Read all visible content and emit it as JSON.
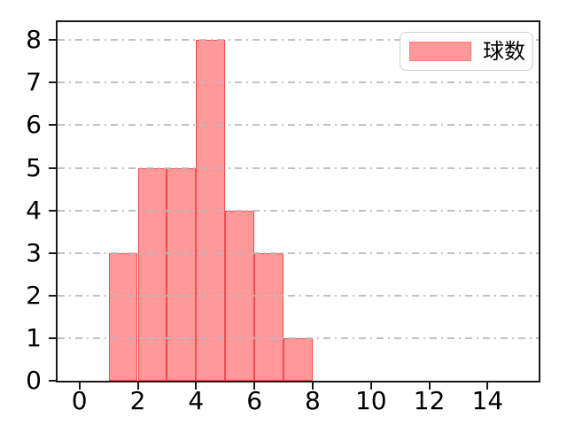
{
  "figure": {
    "kind": "matplotlib-histogram",
    "background": "#ffffff"
  },
  "chart_data": {
    "type": "bar",
    "subtype": "histogram",
    "title": "",
    "xlabel": "",
    "ylabel": "",
    "legend": {
      "label": "球数",
      "position": "upper-right"
    },
    "bin_edges": [
      1,
      2,
      3,
      4,
      5,
      6,
      7,
      8
    ],
    "counts": [
      3,
      5,
      5,
      8,
      4,
      3,
      1
    ],
    "x_tick_values": [
      0,
      2,
      4,
      6,
      8,
      10,
      12,
      14
    ],
    "x_tick_labels": [
      "0",
      "2",
      "4",
      "6",
      "8",
      "10",
      "12",
      "14"
    ],
    "y_tick_values": [
      0,
      1,
      2,
      3,
      4,
      5,
      6,
      7,
      8
    ],
    "y_tick_labels": [
      "0",
      "1",
      "2",
      "3",
      "4",
      "5",
      "6",
      "7",
      "8"
    ],
    "xlim": [
      -0.75,
      15.75
    ],
    "ylim": [
      0,
      8.42
    ],
    "grid": {
      "axis": "y",
      "linestyle": "dash-dot",
      "color": "#b4b8ba",
      "drawn_above_bars": true
    },
    "colors": {
      "bar_fill": "#ff9898",
      "bar_edge": "#f94b4b",
      "spine": "#1a1a1a",
      "tick_label": "#000000",
      "legend_border": "#d0d0d0",
      "legend_background": "#ffffff",
      "legend_swatch_edge": "#ff7b7b"
    }
  }
}
